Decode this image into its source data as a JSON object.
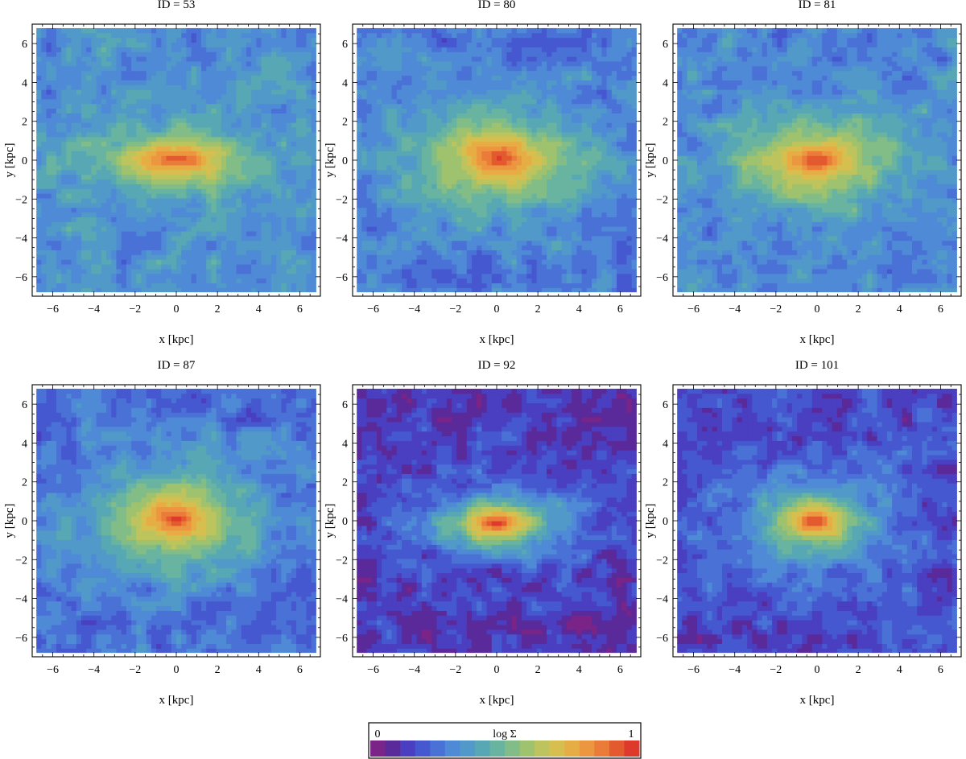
{
  "chart_data": {
    "type": "heatmap",
    "subtype": "filled-contour",
    "grid": false,
    "panels": [
      {
        "title": "ID = 53",
        "xlabel": "x [kpc]",
        "ylabel": "y [kpc]",
        "xlim": [
          -7,
          7
        ],
        "ylim": [
          -7,
          7
        ],
        "data_extent": [
          -6.8,
          6.8
        ],
        "peak": {
          "x": 0.0,
          "y": 0.05
        },
        "scale_x": 2.4,
        "scale_y": 0.95,
        "background_level": 0.33
      },
      {
        "title": "ID = 80",
        "xlabel": "x [kpc]",
        "ylabel": "y [kpc]",
        "xlim": [
          -7,
          7
        ],
        "ylim": [
          -7,
          7
        ],
        "data_extent": [
          -6.8,
          6.8
        ],
        "peak": {
          "x": 0.1,
          "y": 0.1
        },
        "scale_x": 2.7,
        "scale_y": 1.6,
        "background_level": 0.27
      },
      {
        "title": "ID = 81",
        "xlabel": "x [kpc]",
        "ylabel": "y [kpc]",
        "xlim": [
          -7,
          7
        ],
        "ylim": [
          -7,
          7
        ],
        "data_extent": [
          -6.8,
          6.8
        ],
        "peak": {
          "x": 0.0,
          "y": 0.0
        },
        "scale_x": 2.4,
        "scale_y": 1.45,
        "background_level": 0.3
      },
      {
        "title": "ID = 87",
        "xlabel": "x [kpc]",
        "ylabel": "y [kpc]",
        "xlim": [
          -7,
          7
        ],
        "ylim": [
          -7,
          7
        ],
        "data_extent": [
          -6.8,
          6.8
        ],
        "peak": {
          "x": 0.0,
          "y": 0.1
        },
        "scale_x": 2.5,
        "scale_y": 1.6,
        "background_level": 0.25
      },
      {
        "title": "ID = 92",
        "xlabel": "x [kpc]",
        "ylabel": "y [kpc]",
        "xlim": [
          -7,
          7
        ],
        "ylim": [
          -7,
          7
        ],
        "data_extent": [
          -6.8,
          6.8
        ],
        "peak": {
          "x": 0.0,
          "y": -0.1
        },
        "scale_x": 2.2,
        "scale_y": 1.1,
        "background_level": 0.12
      },
      {
        "title": "ID = 101",
        "xlabel": "x [kpc]",
        "ylabel": "y [kpc]",
        "xlim": [
          -7,
          7
        ],
        "ylim": [
          -7,
          7
        ],
        "data_extent": [
          -6.8,
          6.8
        ],
        "peak": {
          "x": -0.1,
          "y": 0.0
        },
        "scale_x": 2.0,
        "scale_y": 1.25,
        "background_level": 0.16
      }
    ],
    "xticks": [
      -6,
      -4,
      -2,
      0,
      2,
      4,
      6
    ],
    "yticks": [
      -6,
      -4,
      -2,
      0,
      2,
      4,
      6
    ],
    "colorbar": {
      "label": "log Σ",
      "min_label": "0",
      "max_label": "1",
      "range": [
        0,
        1
      ],
      "levels": 18,
      "colors": [
        "#7b2487",
        "#5a2a9a",
        "#4a3fc0",
        "#4658cf",
        "#4a72d6",
        "#4f8ad6",
        "#5199c8",
        "#57a8b4",
        "#68b4a0",
        "#82bc86",
        "#9ec26e",
        "#bdc45e",
        "#d7bf4f",
        "#e7ad45",
        "#ec9740",
        "#ea7b38",
        "#e35a2f",
        "#de3a2c"
      ]
    }
  }
}
